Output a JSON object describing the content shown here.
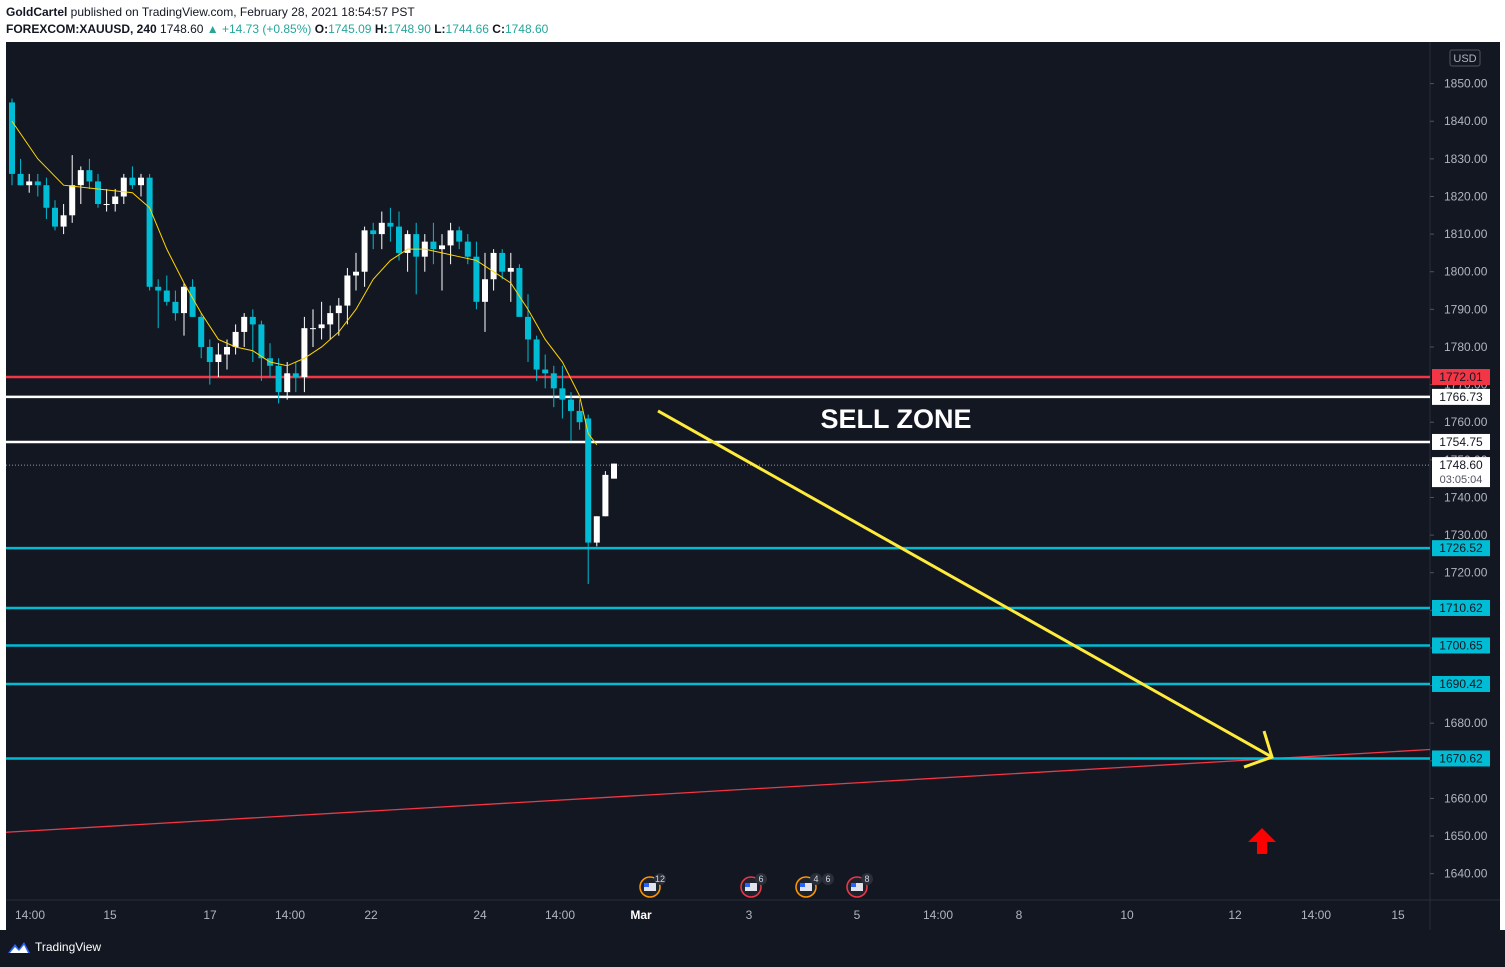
{
  "header": {
    "author": "GoldCartel",
    "published": " published on TradingView.com, February 28, 2021 18:54:57 PST",
    "symbol": "FOREXCOM:XAUUSD, 240",
    "last": "1748.60",
    "change": "▲ +14.73 (+0.85%)",
    "o_label": "O:",
    "o": "1745.09",
    "h_label": "H:",
    "h": "1748.90",
    "l_label": "L:",
    "l": "1744.66",
    "c_label": "C:",
    "c": "1748.60"
  },
  "footer": {
    "brand": "TradingView",
    "brand_icon": "tradingview-logo-icon"
  },
  "chart_data": {
    "type": "candlestick",
    "currency": "USD",
    "ylim": [
      1633,
      1860
    ],
    "y_ticks": [
      1640,
      1650,
      1660,
      1670,
      1680,
      1690,
      1700,
      1710,
      1720,
      1730,
      1740,
      1750,
      1760,
      1770,
      1780,
      1790,
      1800,
      1810,
      1820,
      1830,
      1840,
      1850
    ],
    "x_ticks": [
      "14:00",
      "15",
      "17",
      "14:00",
      "22",
      "24",
      "14:00",
      "Mar",
      "3",
      "5",
      "14:00",
      "8",
      "10",
      "12",
      "14:00",
      "15"
    ],
    "x_tick_bold": [
      false,
      false,
      false,
      false,
      false,
      false,
      false,
      true,
      false,
      false,
      false,
      false,
      false,
      false,
      false,
      false
    ],
    "candles": [
      [
        1845,
        1846,
        1823,
        1826
      ],
      [
        1826,
        1830,
        1823,
        1823
      ],
      [
        1823,
        1826,
        1821,
        1824
      ],
      [
        1824,
        1826,
        1820,
        1823
      ],
      [
        1823,
        1825,
        1814,
        1817
      ],
      [
        1817,
        1819,
        1811,
        1812
      ],
      [
        1812,
        1818,
        1810,
        1815
      ],
      [
        1815,
        1831,
        1813,
        1823
      ],
      [
        1823,
        1828,
        1818,
        1827
      ],
      [
        1827,
        1830,
        1822,
        1824
      ],
      [
        1824,
        1826,
        1817,
        1818
      ],
      [
        1818,
        1822,
        1816,
        1818
      ],
      [
        1818,
        1822,
        1816,
        1820
      ],
      [
        1820,
        1826,
        1818,
        1825
      ],
      [
        1825,
        1828,
        1822,
        1823
      ],
      [
        1823,
        1826,
        1820,
        1825
      ],
      [
        1825,
        1826,
        1795,
        1796
      ],
      [
        1796,
        1798,
        1785,
        1795
      ],
      [
        1795,
        1799,
        1791,
        1792
      ],
      [
        1792,
        1795,
        1787,
        1789
      ],
      [
        1789,
        1797,
        1783,
        1796
      ],
      [
        1796,
        1798,
        1788,
        1788
      ],
      [
        1788,
        1789,
        1777,
        1780
      ],
      [
        1780,
        1782,
        1770,
        1776
      ],
      [
        1776,
        1781,
        1772,
        1778
      ],
      [
        1778,
        1782,
        1774,
        1780
      ],
      [
        1780,
        1786,
        1778,
        1784
      ],
      [
        1784,
        1789,
        1780,
        1788
      ],
      [
        1788,
        1790,
        1776,
        1786
      ],
      [
        1786,
        1787,
        1771,
        1777
      ],
      [
        1777,
        1781,
        1772,
        1775
      ],
      [
        1775,
        1777,
        1765,
        1768
      ],
      [
        1768,
        1776,
        1766,
        1773
      ],
      [
        1773,
        1776,
        1768,
        1772
      ],
      [
        1772,
        1788,
        1768,
        1785
      ],
      [
        1785,
        1790,
        1780,
        1785
      ],
      [
        1785,
        1792,
        1782,
        1786
      ],
      [
        1786,
        1791,
        1782,
        1789
      ],
      [
        1789,
        1793,
        1783,
        1791
      ],
      [
        1791,
        1801,
        1786,
        1799
      ],
      [
        1799,
        1805,
        1795,
        1800
      ],
      [
        1800,
        1812,
        1796,
        1811
      ],
      [
        1811,
        1813,
        1806,
        1810
      ],
      [
        1810,
        1816,
        1806,
        1813
      ],
      [
        1813,
        1817,
        1808,
        1812
      ],
      [
        1812,
        1816,
        1803,
        1805
      ],
      [
        1805,
        1811,
        1800,
        1810
      ],
      [
        1810,
        1813,
        1794,
        1804
      ],
      [
        1804,
        1810,
        1800,
        1808
      ],
      [
        1808,
        1813,
        1802,
        1806
      ],
      [
        1806,
        1810,
        1795,
        1807
      ],
      [
        1807,
        1813,
        1802,
        1811
      ],
      [
        1811,
        1812,
        1806,
        1808
      ],
      [
        1808,
        1810,
        1802,
        1804
      ],
      [
        1804,
        1808,
        1790,
        1792
      ],
      [
        1792,
        1805,
        1784,
        1798
      ],
      [
        1798,
        1806,
        1795,
        1805
      ],
      [
        1805,
        1806,
        1798,
        1800
      ],
      [
        1800,
        1805,
        1792,
        1801
      ],
      [
        1801,
        1802,
        1790,
        1788
      ],
      [
        1788,
        1794,
        1776,
        1782
      ],
      [
        1782,
        1783,
        1771,
        1774
      ],
      [
        1774,
        1778,
        1769,
        1773
      ],
      [
        1773,
        1775,
        1764,
        1769
      ],
      [
        1769,
        1775,
        1761,
        1766
      ],
      [
        1766,
        1768,
        1755,
        1763
      ],
      [
        1763,
        1766,
        1758,
        1760
      ],
      [
        1761,
        1762,
        1717,
        1728
      ],
      [
        1728,
        1735,
        1727,
        1735
      ],
      [
        1735,
        1747,
        1735,
        1746
      ],
      [
        1745,
        1749,
        1745,
        1749
      ]
    ],
    "moving_average": [
      [
        0,
        1840
      ],
      [
        3,
        1830
      ],
      [
        6,
        1823
      ],
      [
        10,
        1822
      ],
      [
        14,
        1821
      ],
      [
        16,
        1817
      ],
      [
        18,
        1806
      ],
      [
        20,
        1797
      ],
      [
        22,
        1789
      ],
      [
        24,
        1782
      ],
      [
        26,
        1780
      ],
      [
        28,
        1779
      ],
      [
        30,
        1776
      ],
      [
        32,
        1775
      ],
      [
        34,
        1777
      ],
      [
        36,
        1780
      ],
      [
        38,
        1784
      ],
      [
        40,
        1790
      ],
      [
        42,
        1798
      ],
      [
        44,
        1803
      ],
      [
        46,
        1806
      ],
      [
        48,
        1806
      ],
      [
        50,
        1805
      ],
      [
        52,
        1804
      ],
      [
        54,
        1803
      ],
      [
        56,
        1800
      ],
      [
        58,
        1797
      ],
      [
        60,
        1790
      ],
      [
        62,
        1782
      ],
      [
        64,
        1776
      ],
      [
        66,
        1767
      ],
      [
        67,
        1757
      ],
      [
        68,
        1754
      ]
    ],
    "horizontal_levels": [
      {
        "price": 1772.01,
        "label": "1772.01",
        "color": "#f23645"
      },
      {
        "price": 1766.73,
        "label": "1766.73",
        "color": "#ffffff"
      },
      {
        "price": 1754.75,
        "label": "1754.75",
        "color": "#ffffff"
      },
      {
        "price": 1726.52,
        "label": "1726.52",
        "color": "#00bcd4"
      },
      {
        "price": 1710.62,
        "label": "1710.62",
        "color": "#00bcd4"
      },
      {
        "price": 1700.65,
        "label": "1700.65",
        "color": "#00bcd4"
      },
      {
        "price": 1690.42,
        "label": "1690.42",
        "color": "#00bcd4"
      },
      {
        "price": 1670.62,
        "label": "1670.62",
        "color": "#00bcd4"
      }
    ],
    "current_price": {
      "label": "1748.60",
      "countdown": "03:05:04",
      "price": 1748.6
    },
    "trendline": {
      "start_price": 1651,
      "end_price": 1673,
      "color": "#f23645"
    },
    "annotation": {
      "text": "SELL ZONE",
      "color": "#ffffff"
    },
    "arrow": {
      "from_price": 1763,
      "to_price": 1671,
      "color": "#ffeb3b"
    },
    "up_arrow_color": "#ff0000",
    "events": [
      {
        "count": "12",
        "icon": "us-flag-event-icon"
      },
      {
        "count": "6",
        "icon": "us-flag-event-icon"
      },
      {
        "count": "4",
        "count2": "6",
        "icon": "us-flag-event-icon"
      },
      {
        "count": "8",
        "icon": "us-flag-event-icon"
      }
    ],
    "colors": {
      "bg": "#131722",
      "up": "#ffffff",
      "down": "#00bcd4",
      "ma": "#ffd600",
      "text": "#b2b5be",
      "grid": "#2a2e39"
    }
  }
}
